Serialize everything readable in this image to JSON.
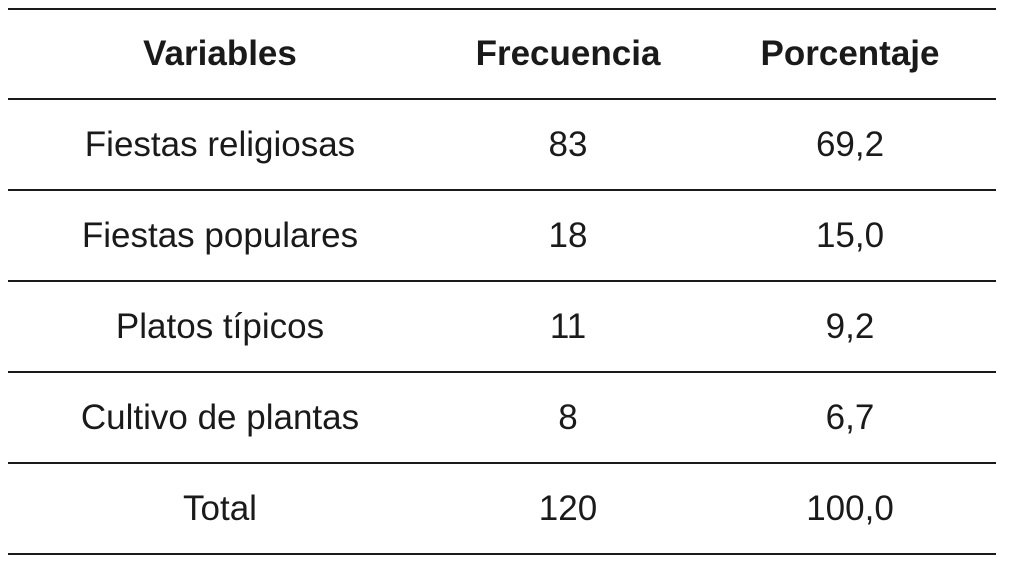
{
  "table": {
    "headers": [
      "Variables",
      "Frecuencia",
      "Porcentaje"
    ],
    "rows": [
      [
        "Fiestas religiosas",
        "83",
        "69,2"
      ],
      [
        "Fiestas populares",
        "18",
        "15,0"
      ],
      [
        "Platos típicos",
        "11",
        "9,2"
      ],
      [
        "Cultivo de plantas",
        "8",
        "6,7"
      ]
    ],
    "total": [
      "Total",
      "120",
      "100,0"
    ]
  }
}
